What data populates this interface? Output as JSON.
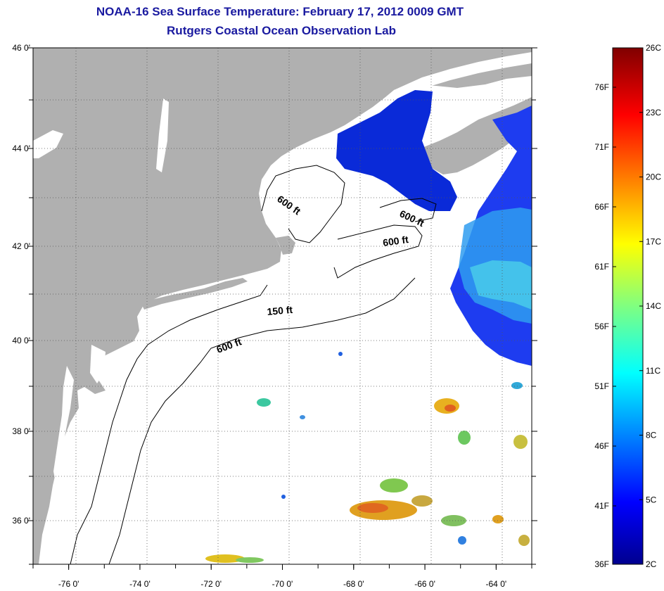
{
  "title": {
    "line1": "NOAA-16 Sea Surface Temperature:  February 17, 2012 0009 GMT",
    "line2": "Rutgers Coastal Ocean Observation Lab"
  },
  "map": {
    "lon_range": [
      -77,
      -63
    ],
    "lat_range": [
      35,
      46
    ],
    "x_ticks": [
      {
        "value": -76,
        "label": "-76 0'"
      },
      {
        "value": -74,
        "label": "-74 0'"
      },
      {
        "value": -72,
        "label": "-72 0'"
      },
      {
        "value": -70,
        "label": "-70 0'"
      },
      {
        "value": -68,
        "label": "-68 0'"
      },
      {
        "value": -66,
        "label": "-66 0'"
      },
      {
        "value": -64,
        "label": "-64 0'"
      }
    ],
    "y_ticks": [
      {
        "value": 46,
        "label": "46 0'"
      },
      {
        "value": 44,
        "label": "44 0'"
      },
      {
        "value": 42,
        "label": "42 0'"
      },
      {
        "value": 40,
        "label": "40 0'"
      },
      {
        "value": 38,
        "label": "38 0'"
      },
      {
        "value": 36,
        "label": "36 0'"
      }
    ],
    "contour_labels": [
      {
        "text": "600 ft",
        "rotate": 35
      },
      {
        "text": "600 ft",
        "rotate": 25
      },
      {
        "text": "600 ft",
        "rotate": -8
      },
      {
        "text": "150 ft",
        "rotate": -5
      },
      {
        "text": "600 ft",
        "rotate": -20
      }
    ],
    "colors": {
      "land": "#b0b0b0",
      "ocean": "#ffffff",
      "grid": "#555555"
    }
  },
  "colorbar": {
    "fahrenheit_labels": [
      "76F",
      "71F",
      "66F",
      "61F",
      "56F",
      "51F",
      "46F",
      "41F",
      "36F"
    ],
    "celsius_labels": [
      "26C",
      "23C",
      "20C",
      "17C",
      "14C",
      "11C",
      "8C",
      "5C",
      "2C"
    ],
    "range_c": [
      2,
      26
    ],
    "colormap": [
      "#00008f",
      "#0000ff",
      "#0080ff",
      "#00ffff",
      "#80ff80",
      "#ffff00",
      "#ff8000",
      "#ff0000",
      "#800000"
    ]
  }
}
